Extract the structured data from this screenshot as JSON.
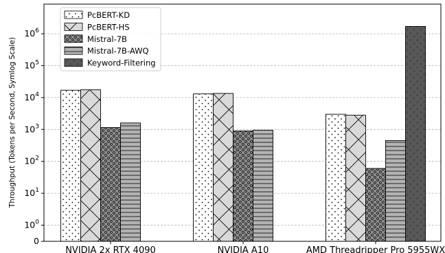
{
  "chart_data": {
    "type": "bar",
    "title": "",
    "xlabel": "",
    "ylabel": "Throughput (Tokens per Second, Symlog Scale)",
    "yscale": "symlog",
    "ylim": [
      0,
      3000000
    ],
    "grid": "horizontal dashed",
    "legend_position": "top-left",
    "categories": [
      "NVIDIA 2x RTX 4090",
      "NVIDIA A10",
      "AMD Threadripper Pro 5955WX"
    ],
    "y_ticks": [
      {
        "value": 0,
        "label": "0"
      },
      {
        "value": 1,
        "label": "10^0"
      },
      {
        "value": 10,
        "label": "10^1"
      },
      {
        "value": 100,
        "label": "10^2"
      },
      {
        "value": 1000,
        "label": "10^3"
      },
      {
        "value": 10000,
        "label": "10^4"
      },
      {
        "value": 100000,
        "label": "10^5"
      },
      {
        "value": 1000000,
        "label": "10^6"
      }
    ],
    "series": [
      {
        "name": "PcBERT-KD",
        "pattern": "dots",
        "color": "#ffffff",
        "values": [
          17000,
          13000,
          3000
        ]
      },
      {
        "name": "PcBERT-HS",
        "pattern": "crosshatch",
        "color": "#d9d9d9",
        "values": [
          17500,
          13500,
          2800
        ]
      },
      {
        "name": "Mistral-7B",
        "pattern": "circles",
        "color": "#8c8c8c",
        "values": [
          1150,
          900,
          60
        ]
      },
      {
        "name": "Mistral-7B-AWQ",
        "pattern": "hlines",
        "color": "#b3b3b3",
        "values": [
          1600,
          950,
          450
        ]
      },
      {
        "name": "Keyword-Filtering",
        "pattern": "stars",
        "color": "#595959",
        "values": [
          null,
          null,
          1700000
        ]
      }
    ]
  }
}
